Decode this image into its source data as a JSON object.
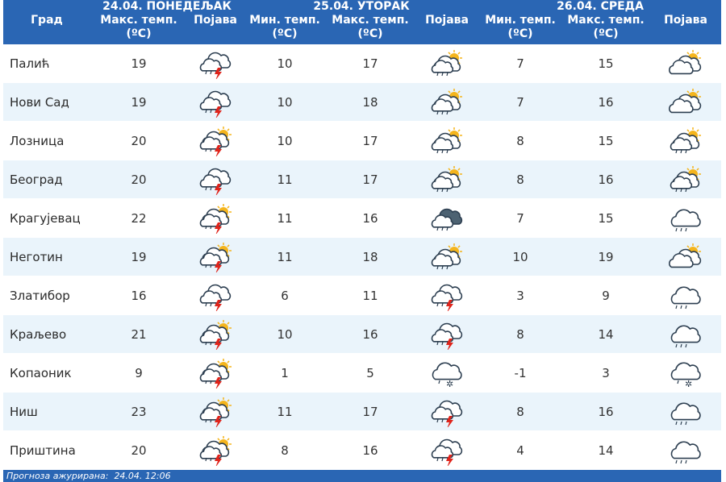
{
  "headers": {
    "city": "Град",
    "max_temp": "Макс. темп.",
    "min_temp": "Мин. темп.",
    "unit": "(ºC)",
    "phenomenon": "Појава"
  },
  "days": [
    {
      "label": "24.04. ПОНЕДЕЉАК"
    },
    {
      "label": "25.04. УТОРАК"
    },
    {
      "label": "26.04. СРЕДА"
    }
  ],
  "rows": [
    {
      "city": "Палић",
      "d1_max": "19",
      "d1_icon": "storm-cloud-icon",
      "d2_min": "10",
      "d2_max": "17",
      "d2_icon": "sun-cloud-drizzle-icon",
      "d3_min": "7",
      "d3_max": "15",
      "d3_icon": "sun-clouds-icon"
    },
    {
      "city": "Нови Сад",
      "d1_max": "19",
      "d1_icon": "storm-cloud-icon",
      "d2_min": "10",
      "d2_max": "18",
      "d2_icon": "sun-cloud-drizzle-icon",
      "d3_min": "7",
      "d3_max": "16",
      "d3_icon": "sun-clouds-icon"
    },
    {
      "city": "Лозница",
      "d1_max": "20",
      "d1_icon": "sun-storm-cloud-icon",
      "d2_min": "10",
      "d2_max": "17",
      "d2_icon": "sun-cloud-drizzle-icon",
      "d3_min": "8",
      "d3_max": "15",
      "d3_icon": "sun-cloud-drizzle-icon"
    },
    {
      "city": "Београд",
      "d1_max": "20",
      "d1_icon": "storm-cloud-icon",
      "d2_min": "11",
      "d2_max": "17",
      "d2_icon": "sun-cloud-drizzle-icon",
      "d3_min": "8",
      "d3_max": "16",
      "d3_icon": "sun-cloud-drizzle-icon"
    },
    {
      "city": "Крагујевац",
      "d1_max": "22",
      "d1_icon": "sun-storm-cloud-icon",
      "d2_min": "11",
      "d2_max": "16",
      "d2_icon": "dark-cloud-drizzle-icon",
      "d3_min": "7",
      "d3_max": "15",
      "d3_icon": "cloud-drizzle-icon"
    },
    {
      "city": "Неготин",
      "d1_max": "19",
      "d1_icon": "sun-storm-cloud-icon",
      "d2_min": "11",
      "d2_max": "18",
      "d2_icon": "sun-cloud-drizzle-icon",
      "d3_min": "10",
      "d3_max": "19",
      "d3_icon": "sun-clouds-icon"
    },
    {
      "city": "Златибор",
      "d1_max": "16",
      "d1_icon": "storm-cloud-icon",
      "d2_min": "6",
      "d2_max": "11",
      "d2_icon": "storm-cloud-icon",
      "d3_min": "3",
      "d3_max": "9",
      "d3_icon": "cloud-drizzle-icon"
    },
    {
      "city": "Краљево",
      "d1_max": "21",
      "d1_icon": "sun-storm-cloud-icon",
      "d2_min": "10",
      "d2_max": "16",
      "d2_icon": "storm-cloud-icon",
      "d3_min": "8",
      "d3_max": "14",
      "d3_icon": "cloud-drizzle-icon"
    },
    {
      "city": "Копаоник",
      "d1_max": "9",
      "d1_icon": "sun-storm-cloud-icon",
      "d2_min": "1",
      "d2_max": "5",
      "d2_icon": "cloud-snow-icon",
      "d3_min": "-1",
      "d3_max": "3",
      "d3_icon": "cloud-snow-icon"
    },
    {
      "city": "Ниш",
      "d1_max": "23",
      "d1_icon": "sun-storm-cloud-icon",
      "d2_min": "11",
      "d2_max": "17",
      "d2_icon": "storm-cloud-icon",
      "d3_min": "8",
      "d3_max": "16",
      "d3_icon": "cloud-drizzle-icon"
    },
    {
      "city": "Приштина",
      "d1_max": "20",
      "d1_icon": "sun-storm-cloud-icon",
      "d2_min": "8",
      "d2_max": "16",
      "d2_icon": "storm-cloud-icon",
      "d3_min": "4",
      "d3_max": "14",
      "d3_icon": "cloud-drizzle-icon"
    }
  ],
  "footer": {
    "label": "Прогноза ажурирана:",
    "timestamp": "24.04. 12:06"
  },
  "colors": {
    "header_bg": "#2a66b4",
    "stripe": "#eaf4fb",
    "cloud": "#ffffff",
    "cloud_outline": "#2c3e50",
    "sun": "#f5b51c",
    "lightning": "#e0241b",
    "dark_cloud": "#4d6272"
  }
}
